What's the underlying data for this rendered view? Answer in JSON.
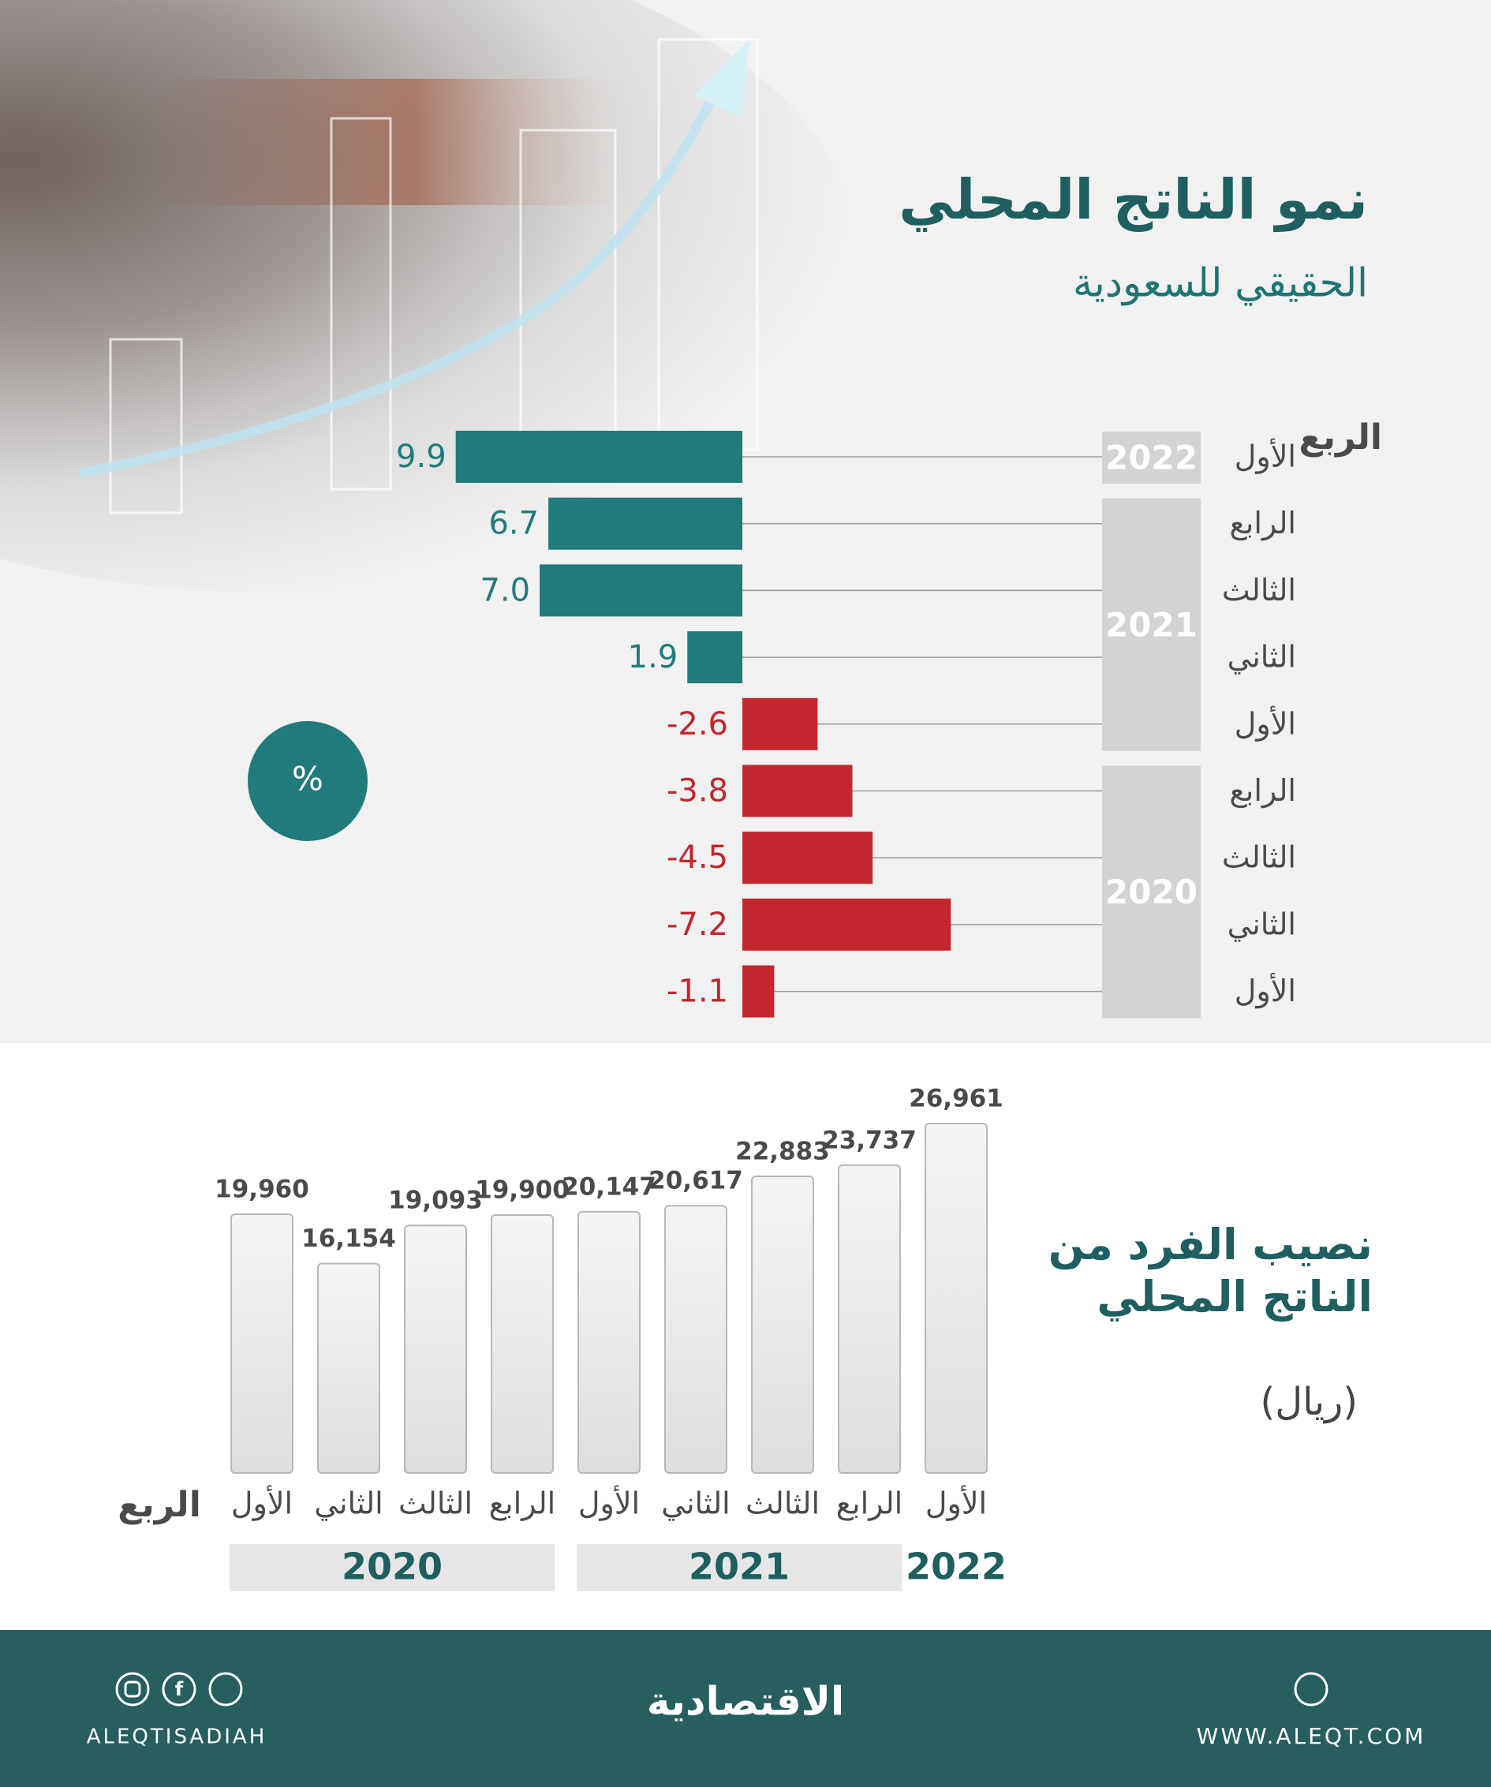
{
  "chart_data": [
    {
      "type": "bar",
      "orientation": "horizontal",
      "title": "نمو الناتج المحلي",
      "subtitle": "الحقيقي للسعودية",
      "unit": "%",
      "axis_label": "الربع",
      "categories": [
        "الأول",
        "الرابع",
        "الثالث",
        "الثاني",
        "الأول",
        "الرابع",
        "الثالث",
        "الثاني",
        "الأول"
      ],
      "years": [
        "2022",
        "2021",
        "2021",
        "2021",
        "2021",
        "2020",
        "2020",
        "2020",
        "2020"
      ],
      "values": [
        9.9,
        6.7,
        7.0,
        1.9,
        -2.6,
        -3.8,
        -4.5,
        -7.2,
        -1.1
      ],
      "value_labels": [
        "9.9",
        "6.7",
        "7.0",
        "1.9",
        "-2.6",
        "-3.8",
        "-4.5",
        "-7.2",
        "-1.1"
      ],
      "positive_color": "#217b7b",
      "negative_color": "#c1272d",
      "xlim": [
        -10,
        10
      ],
      "x_reversed": true
    },
    {
      "type": "bar",
      "orientation": "vertical",
      "title": "نصيب الفرد من الناتج المحلي",
      "unit": "(ريال)",
      "axis_label": "الربع",
      "categories": [
        "الأول",
        "الثاني",
        "الثالث",
        "الرابع",
        "الأول",
        "الثاني",
        "الثالث",
        "الرابع",
        "الأول"
      ],
      "years": [
        "2020",
        "2020",
        "2020",
        "2020",
        "2021",
        "2021",
        "2021",
        "2021",
        "2022"
      ],
      "values": [
        19960,
        16154,
        19093,
        19900,
        20147,
        20617,
        22883,
        23737,
        26961
      ],
      "value_labels": [
        "19,960",
        "16,154",
        "19,093",
        "19,900",
        "20,147",
        "20,617",
        "22,883",
        "23,737",
        "26,961"
      ],
      "color": "#e4e4e4",
      "ylim": [
        0,
        30000
      ]
    }
  ],
  "footer": {
    "logo": "الاقتصادية",
    "handle": "ALEQTISADIAH",
    "website": "WWW.ALEQT.COM"
  }
}
